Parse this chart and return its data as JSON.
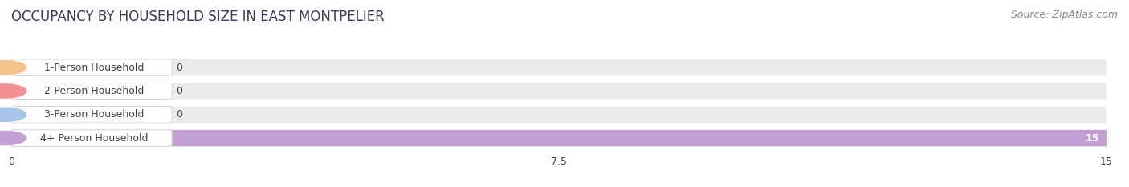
{
  "title": "OCCUPANCY BY HOUSEHOLD SIZE IN EAST MONTPELIER",
  "source": "Source: ZipAtlas.com",
  "categories": [
    "1-Person Household",
    "2-Person Household",
    "3-Person Household",
    "4+ Person Household"
  ],
  "values": [
    0,
    0,
    0,
    15
  ],
  "bar_colors": [
    "#F5C28C",
    "#F59090",
    "#A8C4E8",
    "#C49FD4"
  ],
  "bar_bg_color": "#EBEBEB",
  "xlim": [
    0,
    15
  ],
  "xticks": [
    0,
    7.5,
    15
  ],
  "label_color": "#444444",
  "title_color": "#3a3a5c",
  "title_fontsize": 12,
  "source_fontsize": 9,
  "tick_fontsize": 9,
  "bar_label_fontsize": 9,
  "figsize": [
    14.06,
    2.33
  ],
  "dpi": 100
}
